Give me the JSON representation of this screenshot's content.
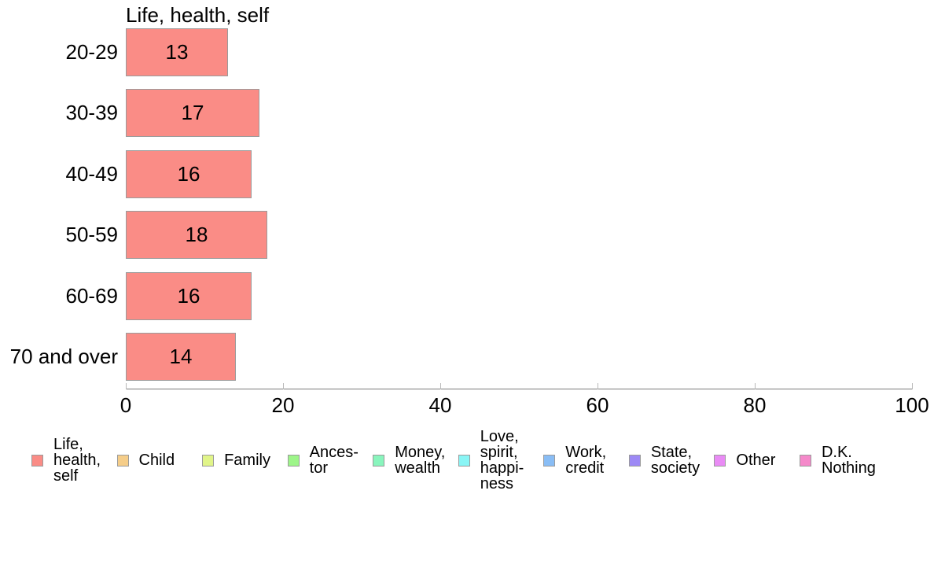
{
  "chart_data": {
    "type": "bar",
    "orientation": "horizontal",
    "title": "Life, health, self",
    "categories": [
      "20-29",
      "30-39",
      "40-49",
      "50-59",
      "60-69",
      "70 and over"
    ],
    "values": [
      13,
      17,
      16,
      18,
      16,
      14
    ],
    "xlabel": "",
    "ylabel": "",
    "xlim": [
      0,
      100
    ],
    "xticks": [
      0,
      20,
      40,
      60,
      80,
      100
    ],
    "grid": "off",
    "bar_color": "#fa8c86",
    "bar_border_color": "#9b9b9b",
    "axis_color": "#7a7a7a",
    "tick_color": "#b9b9b9",
    "legend_position": "bottom"
  },
  "legend": {
    "items": [
      {
        "label": "Life,\nhealth,\nself",
        "color": "#fa8c86"
      },
      {
        "label": "Child",
        "color": "#f5cd89"
      },
      {
        "label": "Family",
        "color": "#e1f589"
      },
      {
        "label": "Ances-\ntor",
        "color": "#9df589"
      },
      {
        "label": "Money,\nwealth",
        "color": "#89f5bd"
      },
      {
        "label": "Love,\nspirit,\nhappi-\nness",
        "color": "#89f5f5"
      },
      {
        "label": "Work,\ncredit",
        "color": "#89bdf5"
      },
      {
        "label": "State,\nsociety",
        "color": "#9d89f5"
      },
      {
        "label": "Other",
        "color": "#e98bf5"
      },
      {
        "label": "D.K.\nNothing",
        "color": "#f589ca"
      }
    ]
  }
}
